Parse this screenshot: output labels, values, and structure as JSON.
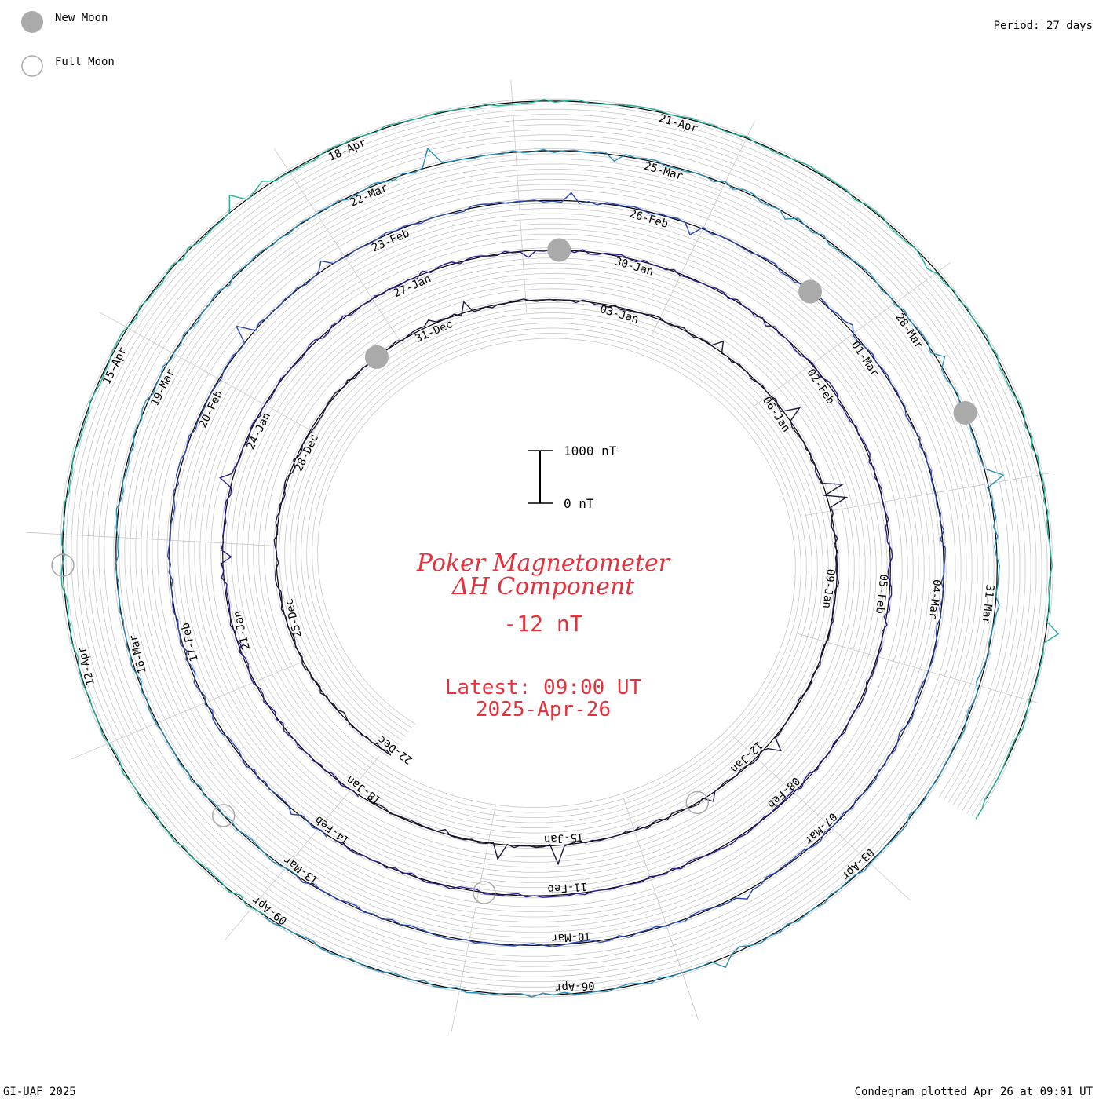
{
  "legend": {
    "new_moon_label": "New Moon",
    "full_moon_label": "Full Moon",
    "new_moon_color": "#aaaaaa",
    "full_moon_color": "#aaaaaa"
  },
  "header": {
    "period_label": "Period: 27 days"
  },
  "footer": {
    "credit": "GI-UAF 2025",
    "plotted": "Condegram plotted Apr 26 at 09:01 UT"
  },
  "center": {
    "title_line1": "Poker Magnetometer",
    "title_line2": "ΔH Component",
    "current_value": "-12 nT",
    "latest_line1": "Latest: 09:00 UT",
    "latest_line2": "2025-Apr-26",
    "scale_top_label": "1000 nT",
    "scale_bottom_label": "0 nT",
    "text_color": "#e8303a"
  },
  "chart_data": {
    "type": "line",
    "layout": "spiral-condegram",
    "period_days": 27,
    "scale_nT": [
      0,
      1000
    ],
    "date_labels": [
      "22-Dec",
      "25-Dec",
      "28-Dec",
      "31-Dec",
      "03-Jan",
      "06-Jan",
      "09-Jan",
      "12-Jan",
      "15-Jan",
      "18-Jan",
      "21-Jan",
      "24-Jan",
      "27-Jan",
      "30-Jan",
      "02-Feb",
      "05-Feb",
      "08-Feb",
      "11-Feb",
      "14-Feb",
      "17-Feb",
      "20-Feb",
      "23-Feb",
      "26-Feb",
      "01-Mar",
      "04-Mar",
      "07-Mar",
      "10-Mar",
      "13-Mar",
      "16-Mar",
      "19-Mar",
      "22-Mar",
      "25-Mar",
      "28-Mar",
      "31-Mar",
      "03-Apr",
      "06-Apr",
      "09-Apr",
      "12-Apr",
      "15-Apr",
      "18-Apr",
      "21-Apr"
    ],
    "series_colors": [
      "#1a1a40",
      "#2a1d8c",
      "#2848b0",
      "#2a8fb8",
      "#22b09a",
      "#5cc040",
      "#9abc22",
      "#b8a818",
      "#c07a10",
      "#c04a10",
      "#c01818"
    ],
    "moon_phases": [
      {
        "type": "new",
        "date": "30-Dec"
      },
      {
        "type": "full",
        "date": "13-Jan"
      },
      {
        "type": "new",
        "date": "29-Jan"
      },
      {
        "type": "full",
        "date": "12-Feb"
      },
      {
        "type": "new",
        "date": "28-Feb"
      },
      {
        "type": "full",
        "date": "14-Mar"
      },
      {
        "type": "new",
        "date": "29-Mar"
      },
      {
        "type": "full",
        "date": "13-Apr"
      }
    ]
  }
}
